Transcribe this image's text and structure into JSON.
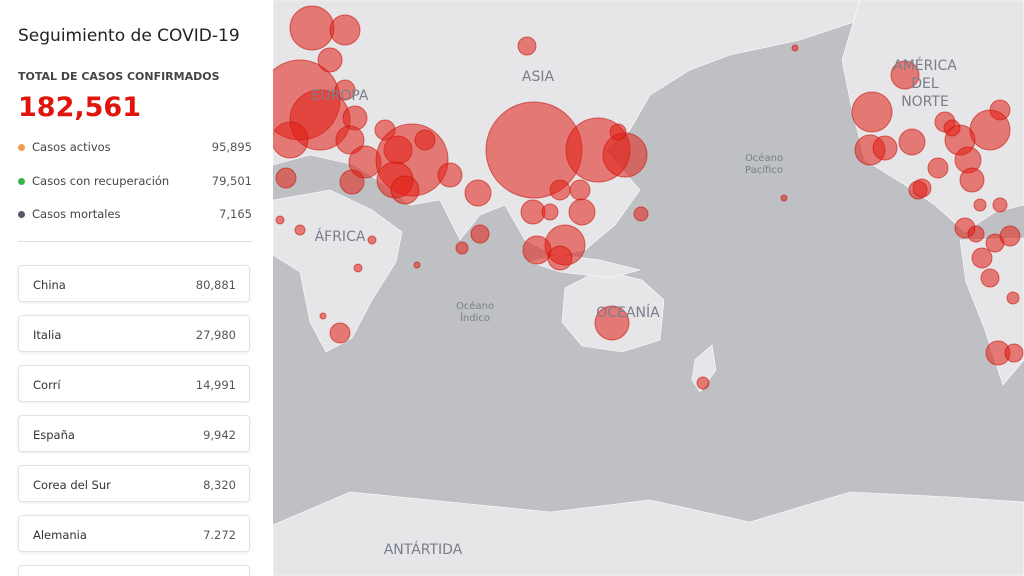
{
  "sidebar": {
    "title": "Seguimiento de COVID-19",
    "total_label": "TOTAL DE CASOS CONFIRMADOS",
    "total_value": "182,561",
    "stats": [
      {
        "label": "Casos activos",
        "value": "95,895"
      },
      {
        "label": "Casos con recuperación",
        "value": "79,501"
      },
      {
        "label": "Casos mortales",
        "value": "7,165"
      }
    ],
    "countries": [
      {
        "name": "China",
        "value": "80,881"
      },
      {
        "name": "Italia",
        "value": "27,980"
      },
      {
        "name": "Corrí",
        "value": "14,991"
      },
      {
        "name": "España",
        "value": "9,942"
      },
      {
        "name": "Corea del Sur",
        "value": "8,320"
      },
      {
        "name": "Alemania",
        "value": "7.272"
      }
    ]
  },
  "map": {
    "labels": {
      "asia": "ASIA",
      "europe": "EUROPA",
      "africa": "ÁFRICA",
      "north_america": [
        "AMÉRICA",
        "DEL",
        "NORTE"
      ],
      "pacific": [
        "Océano",
        "Pacífico"
      ],
      "indian": [
        "Océano",
        "Índico"
      ],
      "oceania": "OCEANÍA",
      "antarctica": "ANTÁRTIDA"
    }
  }
}
